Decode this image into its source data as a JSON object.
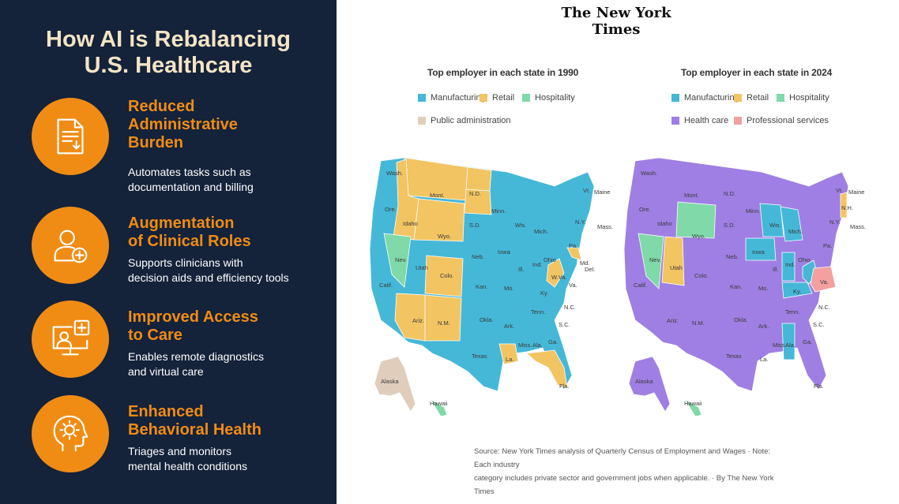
{
  "left_panel": {
    "title_line1": "How AI is Rebalancing",
    "title_line2": "U.S. Healthcare",
    "features": [
      {
        "title_lines": [
          "Reduced",
          "Administrative",
          "Burden"
        ],
        "desc_lines": [
          "Automates tasks such as",
          "documentation and billing"
        ],
        "icon": "document-icon"
      },
      {
        "title_lines": [
          "Augmentation",
          "of Clinical Roles"
        ],
        "desc_lines": [
          "Supports clinicians with",
          "decision aids and efficiency tools"
        ],
        "icon": "user-add-icon"
      },
      {
        "title_lines": [
          "Improved Access",
          "to Care"
        ],
        "desc_lines": [
          "Enables remote diagnostics",
          "and virtual care"
        ],
        "icon": "telehealth-monitor-icon"
      },
      {
        "title_lines": [
          "Enhanced",
          "Behavioral Health"
        ],
        "desc_lines": [
          "Triages and monitors",
          "mental health conditions"
        ],
        "icon": "head-brain-icon"
      }
    ],
    "accent_color": "#f08c14",
    "background_color": "#14223a"
  },
  "right_panel": {
    "publisher": "The New York Times",
    "map_1990": {
      "title": "Top employer in each state in 1990",
      "legend": [
        {
          "label": "Manufacturing",
          "color": "#45b8d8"
        },
        {
          "label": "Retail",
          "color": "#f2c462"
        },
        {
          "label": "Hospitality",
          "color": "#7fd9a8"
        },
        {
          "label": "Public administration",
          "color": "#e0cdbb"
        }
      ],
      "state_labels": [
        "Wash.",
        "Ore.",
        "Calif.",
        "Nev.",
        "Idaho",
        "Mont.",
        "Wyo.",
        "Utah",
        "Colo.",
        "Ariz.",
        "N.M.",
        "N.D.",
        "S.D.",
        "Neb.",
        "Kan.",
        "Okla.",
        "Texas",
        "Minn.",
        "Iowa",
        "Mo.",
        "Ark.",
        "La.",
        "Wis.",
        "Ill.",
        "Miss.",
        "Mich.",
        "Ind.",
        "Ky.",
        "Tenn.",
        "Ala.",
        "Ohio",
        "W.Va.",
        "Ga.",
        "Fla.",
        "S.C.",
        "N.C.",
        "Va.",
        "Pa.",
        "N.Y.",
        "Vt.",
        "Maine",
        "Mass.",
        "Md.",
        "Del.",
        "Alaska",
        "Hawaii"
      ]
    },
    "map_2024": {
      "title": "Top employer in each state in 2024",
      "legend": [
        {
          "label": "Manufacturing",
          "color": "#45b8d8"
        },
        {
          "label": "Retail",
          "color": "#f2c462"
        },
        {
          "label": "Hospitality",
          "color": "#7fd9a8"
        },
        {
          "label": "Health care",
          "color": "#9f7fe3"
        },
        {
          "label": "Professional services",
          "color": "#f4a0a0"
        }
      ],
      "state_labels": [
        "Wash.",
        "Ore.",
        "Calif.",
        "Nev.",
        "Idaho",
        "Mont.",
        "Wyo.",
        "Utah",
        "Colo.",
        "Ariz.",
        "N.M.",
        "N.D.",
        "S.D.",
        "Neb.",
        "Kan.",
        "Okla.",
        "Texas",
        "Minn.",
        "Iowa",
        "Mo.",
        "Ark.",
        "La.",
        "Wis.",
        "Ill.",
        "Miss.",
        "Mich.",
        "Ind.",
        "Ky.",
        "Tenn.",
        "Ala.",
        "Ohio",
        "Ga.",
        "Fla.",
        "S.C.",
        "N.C.",
        "Va.",
        "Pa.",
        "N.Y.",
        "Vt.",
        "Maine",
        "N.H.",
        "Mass.",
        "Alaska",
        "Hawaii"
      ]
    },
    "source_line1": "Source: New York Times analysis of Quarterly Census of Employment and Wages  ·  Note: Each industry",
    "source_line2": "category includes private sector and government jobs when applicable.  ·  By The New York Times"
  }
}
